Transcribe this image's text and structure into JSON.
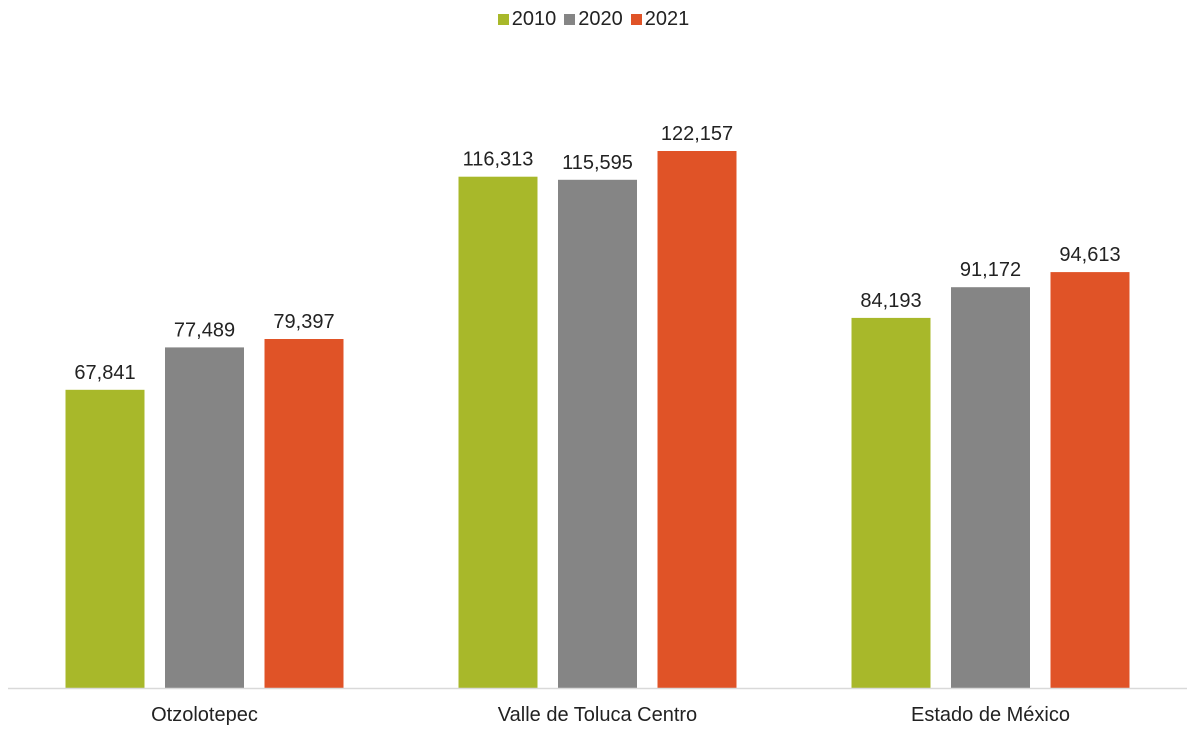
{
  "chart_data": {
    "type": "bar",
    "categories": [
      "Otzolotepec",
      "Valle de Toluca Centro",
      "Estado de México"
    ],
    "series": [
      {
        "name": "2010",
        "color": "#a8b82a",
        "values": [
          67841,
          116313,
          84193
        ]
      },
      {
        "name": "2020",
        "color": "#858585",
        "values": [
          77489,
          115595,
          91172
        ]
      },
      {
        "name": "2021",
        "color": "#e05327",
        "values": [
          79397,
          122157,
          94613
        ]
      }
    ],
    "data_labels": [
      [
        "67,841",
        "116,313",
        "84,193"
      ],
      [
        "77,489",
        "115,595",
        "91,172"
      ],
      [
        "79,397",
        "122,157",
        "94,613"
      ]
    ],
    "ylim": [
      0,
      136000
    ],
    "grid": false,
    "legend_position": "top-center"
  }
}
